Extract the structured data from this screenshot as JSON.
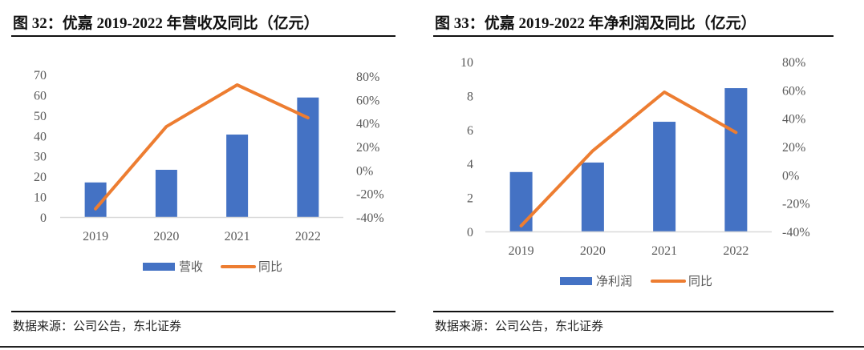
{
  "charts": [
    {
      "figure_title": "图  32：优嘉 2019-2022 年营收及同比（亿元）",
      "source": "数据来源：公司公告，东北证券"
    },
    {
      "figure_title": "图  33：优嘉 2019-2022 年净利润及同比（亿元）",
      "source": "数据来源：公司公告，东北证券"
    }
  ],
  "colors": {
    "bar": "#4472C4",
    "line": "#ED7D31",
    "axis": "#D9D9D9",
    "tick": "#595959"
  },
  "chart_data": [
    {
      "type": "bar",
      "title": "图  32：优嘉 2019-2022 年营收及同比（亿元）",
      "categories": [
        "2019",
        "2020",
        "2021",
        "2022"
      ],
      "series": [
        {
          "name": "营收",
          "type": "bar",
          "axis": "left",
          "values": [
            17,
            23.2,
            40.5,
            58.7
          ]
        },
        {
          "name": "同比",
          "type": "line",
          "axis": "right",
          "values": [
            -33,
            37,
            72.5,
            44.5
          ]
        }
      ],
      "ylim": [
        0,
        70
      ],
      "yticks": [
        "0",
        "10",
        "20",
        "30",
        "40",
        "50",
        "60",
        "70"
      ],
      "y2lim": [
        -40,
        80
      ],
      "y2ticks": [
        "-40%",
        "-20%",
        "0%",
        "20%",
        "40%",
        "60%",
        "80%"
      ],
      "xlabel": "",
      "ylabel": "",
      "grid": false,
      "legend": "bottom"
    },
    {
      "type": "bar",
      "title": "图  33：优嘉 2019-2022 年净利润及同比（亿元）",
      "categories": [
        "2019",
        "2020",
        "2021",
        "2022"
      ],
      "series": [
        {
          "name": "净利润",
          "type": "bar",
          "axis": "left",
          "values": [
            3.5,
            4.06,
            6.46,
            8.44
          ]
        },
        {
          "name": "同比",
          "type": "line",
          "axis": "right",
          "values": [
            -36,
            17,
            58.5,
            30
          ]
        }
      ],
      "ylim": [
        0,
        10
      ],
      "yticks": [
        "0",
        "2",
        "4",
        "6",
        "8",
        "10"
      ],
      "y2lim": [
        -40,
        80
      ],
      "y2ticks": [
        "-40%",
        "-20%",
        "0%",
        "20%",
        "40%",
        "60%",
        "80%"
      ],
      "xlabel": "",
      "ylabel": "",
      "grid": false,
      "legend": "bottom"
    }
  ]
}
